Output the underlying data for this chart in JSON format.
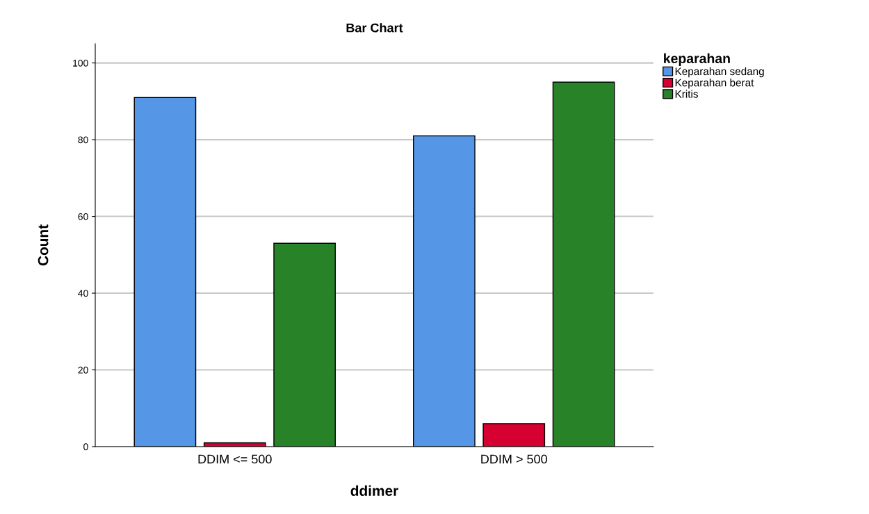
{
  "chart_data": {
    "type": "bar",
    "title": "Bar Chart",
    "xlabel": "ddimer",
    "ylabel": "Count",
    "legend_title": "keparahan",
    "categories": [
      "DDIM <= 500",
      "DDIM > 500"
    ],
    "series": [
      {
        "name": "Keparahan sedang",
        "color": "#5596e6",
        "values": [
          91,
          81
        ]
      },
      {
        "name": "Keparahan berat",
        "color": "#d60031",
        "values": [
          1,
          6
        ]
      },
      {
        "name": "Kritis",
        "color": "#288228",
        "values": [
          53,
          95
        ]
      }
    ],
    "ylim": [
      0,
      105
    ],
    "yticks": [
      0,
      20,
      40,
      60,
      80,
      100
    ],
    "grid": "y",
    "legend": "top right"
  }
}
